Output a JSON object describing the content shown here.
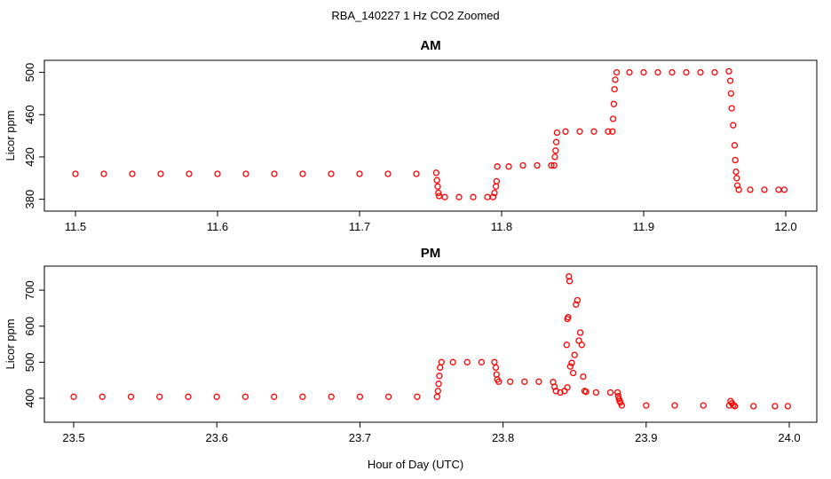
{
  "title": "RBA_140227  1 Hz CO2 Zoomed",
  "xlabel": "Hour of Day (UTC)",
  "colors": {
    "points": "#ff0000",
    "frame": "#000000"
  },
  "chart_data": [
    {
      "type": "scatter",
      "title": "AM",
      "xlabel": "Hour of Day (UTC)",
      "ylabel": "Licor ppm",
      "xlim": [
        11.5,
        12.0
      ],
      "ylim": [
        378,
        503
      ],
      "x_ticks": [
        "11.5",
        "11.6",
        "11.7",
        "11.8",
        "11.9",
        "12.0"
      ],
      "y_ticks": [
        "380",
        "420",
        "460",
        "500"
      ],
      "grid": false,
      "marker": "open-circle",
      "points": [
        [
          11.5,
          404
        ],
        [
          11.52,
          404
        ],
        [
          11.54,
          404
        ],
        [
          11.56,
          404
        ],
        [
          11.58,
          404
        ],
        [
          11.6,
          404
        ],
        [
          11.62,
          404
        ],
        [
          11.64,
          404
        ],
        [
          11.66,
          404
        ],
        [
          11.68,
          404
        ],
        [
          11.7,
          404
        ],
        [
          11.72,
          404
        ],
        [
          11.74,
          404
        ],
        [
          11.754,
          405
        ],
        [
          11.7545,
          398
        ],
        [
          11.755,
          392
        ],
        [
          11.7555,
          386
        ],
        [
          11.756,
          383
        ],
        [
          11.76,
          382
        ],
        [
          11.77,
          382
        ],
        [
          11.78,
          382
        ],
        [
          11.79,
          382
        ],
        [
          11.794,
          382
        ],
        [
          11.795,
          386
        ],
        [
          11.796,
          392
        ],
        [
          11.7965,
          397
        ],
        [
          11.797,
          411
        ],
        [
          11.805,
          411
        ],
        [
          11.815,
          412
        ],
        [
          11.825,
          412
        ],
        [
          11.835,
          412
        ],
        [
          11.837,
          412
        ],
        [
          11.8375,
          420
        ],
        [
          11.838,
          426
        ],
        [
          11.8385,
          434
        ],
        [
          11.839,
          443
        ],
        [
          11.845,
          444
        ],
        [
          11.855,
          444
        ],
        [
          11.865,
          444
        ],
        [
          11.875,
          444
        ],
        [
          11.878,
          444
        ],
        [
          11.8785,
          456
        ],
        [
          11.879,
          470
        ],
        [
          11.8795,
          484
        ],
        [
          11.88,
          493
        ],
        [
          11.881,
          500
        ],
        [
          11.89,
          500
        ],
        [
          11.9,
          500
        ],
        [
          11.91,
          500
        ],
        [
          11.92,
          500
        ],
        [
          11.93,
          500
        ],
        [
          11.94,
          500
        ],
        [
          11.95,
          500
        ],
        [
          11.96,
          501
        ],
        [
          11.961,
          492
        ],
        [
          11.9615,
          480
        ],
        [
          11.962,
          466
        ],
        [
          11.963,
          450
        ],
        [
          11.964,
          431
        ],
        [
          11.9645,
          417
        ],
        [
          11.965,
          406
        ],
        [
          11.9655,
          400
        ],
        [
          11.966,
          393
        ],
        [
          11.967,
          389
        ],
        [
          11.975,
          389
        ],
        [
          11.985,
          389
        ],
        [
          11.995,
          389
        ],
        [
          11.999,
          389
        ]
      ]
    },
    {
      "type": "scatter",
      "title": "PM",
      "xlabel": "Hour of Day (UTC)",
      "ylabel": "Licor ppm",
      "xlim": [
        23.5,
        24.0
      ],
      "ylim": [
        363,
        747
      ],
      "x_ticks": [
        "23.5",
        "23.6",
        "23.7",
        "23.8",
        "23.9",
        "24.0"
      ],
      "y_ticks": [
        "400",
        "500",
        "600",
        "700"
      ],
      "grid": false,
      "marker": "open-circle",
      "points": [
        [
          23.5,
          404
        ],
        [
          23.52,
          404
        ],
        [
          23.54,
          404
        ],
        [
          23.56,
          404
        ],
        [
          23.58,
          404
        ],
        [
          23.6,
          404
        ],
        [
          23.62,
          404
        ],
        [
          23.64,
          404
        ],
        [
          23.66,
          404
        ],
        [
          23.68,
          404
        ],
        [
          23.7,
          404
        ],
        [
          23.72,
          404
        ],
        [
          23.74,
          404
        ],
        [
          23.754,
          404
        ],
        [
          23.7545,
          420
        ],
        [
          23.755,
          440
        ],
        [
          23.7555,
          462
        ],
        [
          23.756,
          485
        ],
        [
          23.757,
          500
        ],
        [
          23.765,
          500
        ],
        [
          23.775,
          500
        ],
        [
          23.785,
          500
        ],
        [
          23.794,
          500
        ],
        [
          23.795,
          485
        ],
        [
          23.7955,
          466
        ],
        [
          23.796,
          452
        ],
        [
          23.797,
          446
        ],
        [
          23.805,
          446
        ],
        [
          23.815,
          446
        ],
        [
          23.825,
          446
        ],
        [
          23.835,
          445
        ],
        [
          23.836,
          432
        ],
        [
          23.837,
          420
        ],
        [
          23.84,
          416
        ],
        [
          23.843,
          420
        ],
        [
          23.845,
          430
        ],
        [
          23.8445,
          548
        ],
        [
          23.845,
          620
        ],
        [
          23.8455,
          625
        ],
        [
          23.846,
          738
        ],
        [
          23.8465,
          725
        ],
        [
          23.847,
          488
        ],
        [
          23.848,
          498
        ],
        [
          23.849,
          470
        ],
        [
          23.85,
          520
        ],
        [
          23.851,
          660
        ],
        [
          23.852,
          672
        ],
        [
          23.853,
          560
        ],
        [
          23.854,
          582
        ],
        [
          23.855,
          548
        ],
        [
          23.856,
          460
        ],
        [
          23.857,
          420
        ],
        [
          23.858,
          418
        ],
        [
          23.865,
          416
        ],
        [
          23.875,
          416
        ],
        [
          23.88,
          416
        ],
        [
          23.8805,
          406
        ],
        [
          23.881,
          398
        ],
        [
          23.8815,
          392
        ],
        [
          23.882,
          388
        ],
        [
          23.883,
          380
        ],
        [
          23.9,
          380
        ],
        [
          23.92,
          380
        ],
        [
          23.94,
          380
        ],
        [
          23.958,
          380
        ],
        [
          23.959,
          392
        ],
        [
          23.96,
          386
        ],
        [
          23.961,
          381
        ],
        [
          23.962,
          378
        ],
        [
          23.975,
          378
        ],
        [
          23.99,
          378
        ],
        [
          23.999,
          378
        ]
      ]
    }
  ]
}
